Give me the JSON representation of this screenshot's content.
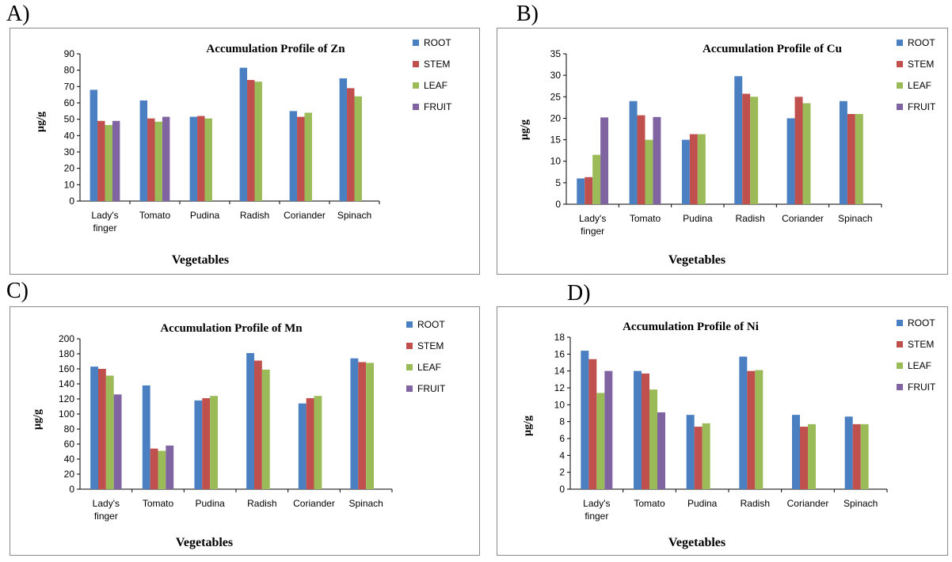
{
  "panels": [
    {
      "letter": "A)"
    },
    {
      "letter": "B)"
    },
    {
      "letter": "C)"
    },
    {
      "letter": "D)"
    }
  ],
  "colors": {
    "ROOT": "#4a7fc1",
    "STEM": "#c0504d",
    "LEAF": "#9bbb59",
    "FRUIT": "#8064a2",
    "axis": "#000000",
    "border": "#8a8a8a"
  },
  "chart_data": [
    {
      "type": "bar",
      "title": "Accumulation Profile of Zn",
      "xlabel": "Vegetables",
      "ylabel": "µg/g",
      "ylim": [
        0,
        90
      ],
      "yticks": [
        "0",
        "10",
        "20",
        "30",
        "40",
        "50",
        "60",
        "70",
        "80",
        "90"
      ],
      "categories": [
        [
          "Lady's",
          "finger"
        ],
        [
          "Tomato"
        ],
        [
          "Pudina"
        ],
        [
          "Radish"
        ],
        [
          "Coriander"
        ],
        [
          "Spinach"
        ]
      ],
      "legend_position": "top-right",
      "grid": false,
      "series": [
        {
          "name": "ROOT",
          "values": [
            68,
            61.5,
            51.5,
            81.5,
            55,
            75
          ]
        },
        {
          "name": "STEM",
          "values": [
            49,
            50.5,
            52,
            74,
            51.5,
            69
          ]
        },
        {
          "name": "LEAF",
          "values": [
            46.5,
            48.5,
            50.5,
            73,
            54,
            64
          ]
        },
        {
          "name": "FRUIT",
          "values": [
            49,
            51.5,
            null,
            null,
            null,
            null
          ]
        }
      ]
    },
    {
      "type": "bar",
      "title": "Accumulation Profile of Cu",
      "xlabel": "Vegetables",
      "ylabel": "µg/g",
      "ylim": [
        0,
        35
      ],
      "yticks": [
        "0",
        "5",
        "10",
        "15",
        "20",
        "25",
        "30",
        "35"
      ],
      "categories": [
        [
          "Lady's",
          "finger"
        ],
        [
          "Tomato"
        ],
        [
          "Pudina"
        ],
        [
          "Radish"
        ],
        [
          "Coriander"
        ],
        [
          "Spinach"
        ]
      ],
      "legend_position": "top-right",
      "grid": false,
      "series": [
        {
          "name": "ROOT",
          "values": [
            6,
            24,
            15,
            29.8,
            20,
            24
          ]
        },
        {
          "name": "STEM",
          "values": [
            6.3,
            20.7,
            16.3,
            25.7,
            25,
            21
          ]
        },
        {
          "name": "LEAF",
          "values": [
            11.5,
            15,
            16.3,
            25,
            23.5,
            21
          ]
        },
        {
          "name": "FRUIT",
          "values": [
            20.2,
            20.3,
            null,
            null,
            null,
            null
          ]
        }
      ]
    },
    {
      "type": "bar",
      "title": "Accumulation Profile of Mn",
      "xlabel": "Vegetables",
      "ylabel": "µg/g",
      "ylim": [
        0,
        200
      ],
      "yticks": [
        "0",
        "20",
        "40",
        "60",
        "80",
        "100",
        "120",
        "140",
        "160",
        "180",
        "200"
      ],
      "categories": [
        [
          "Lady's",
          "finger"
        ],
        [
          "Tomato"
        ],
        [
          "Pudina"
        ],
        [
          "Radish"
        ],
        [
          "Coriander"
        ],
        [
          "Spinach"
        ]
      ],
      "legend_position": "top-right",
      "grid": false,
      "series": [
        {
          "name": "ROOT",
          "values": [
            163,
            138,
            118,
            181,
            114,
            174
          ]
        },
        {
          "name": "STEM",
          "values": [
            160,
            54,
            121,
            171,
            121,
            169
          ]
        },
        {
          "name": "LEAF",
          "values": [
            151,
            51,
            124,
            159,
            124,
            168
          ]
        },
        {
          "name": "FRUIT",
          "values": [
            126,
            58,
            null,
            null,
            null,
            null
          ]
        }
      ]
    },
    {
      "type": "bar",
      "title": "Accumulation Profile of Ni",
      "xlabel": "Vegetables",
      "ylabel": "µg/g",
      "ylim": [
        0,
        18
      ],
      "yticks": [
        "0",
        "2",
        "4",
        "6",
        "8",
        "10",
        "12",
        "14",
        "16",
        "18"
      ],
      "categories": [
        [
          "Lady's",
          "finger"
        ],
        [
          "Tomato"
        ],
        [
          "Pudina"
        ],
        [
          "Radish"
        ],
        [
          "Coriander"
        ],
        [
          "Spinach"
        ]
      ],
      "legend_position": "top-right",
      "grid": false,
      "series": [
        {
          "name": "ROOT",
          "values": [
            16.4,
            14,
            8.8,
            15.7,
            8.8,
            8.6
          ]
        },
        {
          "name": "STEM",
          "values": [
            15.4,
            13.7,
            7.4,
            14,
            7.4,
            7.7
          ]
        },
        {
          "name": "LEAF",
          "values": [
            11.4,
            11.8,
            7.8,
            14.1,
            7.7,
            7.7
          ]
        },
        {
          "name": "FRUIT",
          "values": [
            14,
            9.1,
            null,
            null,
            null,
            null
          ]
        }
      ]
    }
  ]
}
